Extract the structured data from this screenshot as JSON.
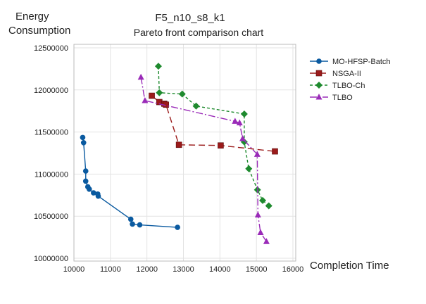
{
  "chart_data": {
    "type": "line",
    "title": "F5_n10_s8_k1",
    "subtitle": "Pareto front comparison chart",
    "xlabel": "Completion Time",
    "ylabel": [
      "Energy",
      "Consumption"
    ],
    "xlim": [
      10000,
      16000
    ],
    "ylim": [
      10000000,
      12500000
    ],
    "xticks": [
      "10000",
      "11000",
      "12000",
      "13000",
      "14000",
      "15000",
      "16000"
    ],
    "yticks": [
      "10000000",
      "10500000",
      "11000000",
      "11500000",
      "12000000",
      "12500000"
    ],
    "grid": true,
    "legend_position": "right",
    "series": [
      {
        "name": "MO-HFSP-Batch",
        "color": "#0a5aa0",
        "marker": "circle",
        "dash": "",
        "points": [
          [
            10240,
            11435000
          ],
          [
            10265,
            11373000
          ],
          [
            10323,
            11036000
          ],
          [
            10323,
            10916000
          ],
          [
            10381,
            10849000
          ],
          [
            10420,
            10821000
          ],
          [
            10537,
            10777000
          ],
          [
            10653,
            10763000
          ],
          [
            10666,
            10738000
          ],
          [
            11558,
            10464000
          ],
          [
            11603,
            10406000
          ],
          [
            11803,
            10397000
          ],
          [
            12838,
            10367000
          ]
        ]
      },
      {
        "name": "NSGA-II",
        "color": "#9b1b1b",
        "marker": "square",
        "dash": "9,5",
        "points": [
          [
            12133,
            11931000
          ],
          [
            12340,
            11856000
          ],
          [
            12476,
            11836000
          ],
          [
            12521,
            11825000
          ],
          [
            12877,
            11348000
          ],
          [
            14021,
            11340000
          ],
          [
            15508,
            11270000
          ]
        ]
      },
      {
        "name": "TLBO-Ch",
        "color": "#1e8a2e",
        "marker": "diamond",
        "dash": "4,3",
        "points": [
          [
            12314,
            12282000
          ],
          [
            12340,
            11967000
          ],
          [
            12967,
            11951000
          ],
          [
            13348,
            11808000
          ],
          [
            14667,
            11714000
          ],
          [
            14667,
            11382000
          ],
          [
            14790,
            11064000
          ],
          [
            15029,
            10813000
          ],
          [
            15171,
            10687000
          ],
          [
            15339,
            10623000
          ]
        ]
      },
      {
        "name": "TLBO",
        "color": "#9a2bb8",
        "marker": "triangle",
        "dash": "10,3,2,3",
        "points": [
          [
            11836,
            12151000
          ],
          [
            11946,
            11873000
          ],
          [
            14415,
            11627000
          ],
          [
            14538,
            11608000
          ],
          [
            14622,
            11421000
          ],
          [
            15023,
            11234000
          ],
          [
            15042,
            10514000
          ],
          [
            15113,
            10305000
          ],
          [
            15275,
            10199000
          ]
        ]
      }
    ]
  }
}
